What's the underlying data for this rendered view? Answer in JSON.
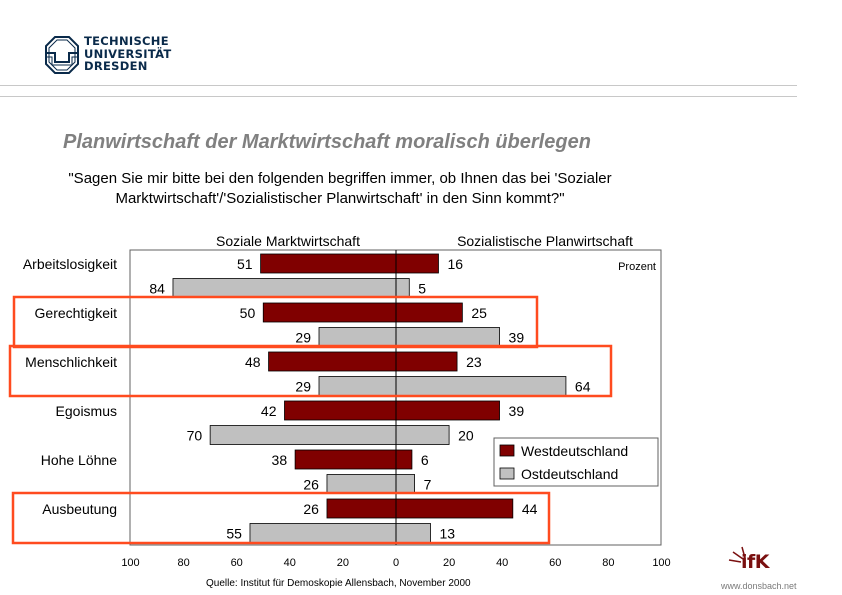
{
  "header": {
    "logo_lines": [
      "TECHNISCHE",
      "UNIVERSITÄT",
      "DRESDEN"
    ],
    "logo_icon": "tu-dresden-octagon-logo"
  },
  "slide": {
    "title": "Planwirtschaft der Marktwirtschaft moralisch überlegen",
    "question": "\"Sagen Sie mir bitte bei den folgenden begriffen immer, ob Ihnen das bei 'Sozialer\nMarktwirtschaft'/'Sozialistischer Planwirtschaft' in den Sinn kommt?\"",
    "source": "Quelle: Institut für Demoskopie Allensbach, November 2000"
  },
  "branding": {
    "ifk_label": "ifK",
    "ifk_url": "www.donsbach.net",
    "ifk_color": "#7a1010"
  },
  "colors": {
    "west": "#800000",
    "east": "#c0c0c0",
    "highlight": "#ff4b1f",
    "title_gray": "#808080"
  },
  "chart_data": {
    "type": "bar",
    "orientation": "horizontal-diverging",
    "left_header": "Soziale Marktwirtschaft",
    "right_header": "Sozialistische Planwirtschaft",
    "unit_label": "Prozent",
    "categories": [
      "Arbeitslosigkeit",
      "Gerechtigkeit",
      "Menschlichkeit",
      "Egoismus",
      "Hohe Löhne",
      "Ausbeutung"
    ],
    "series": [
      {
        "name": "Westdeutschland",
        "color": "#800000",
        "soziale_marktwirtschaft": [
          51,
          50,
          48,
          42,
          38,
          26
        ],
        "sozialistische_planwirtschaft": [
          16,
          25,
          23,
          39,
          6,
          44
        ]
      },
      {
        "name": "Ostdeutschland",
        "color": "#c0c0c0",
        "soziale_marktwirtschaft": [
          84,
          29,
          29,
          70,
          26,
          55
        ],
        "sozialistische_planwirtschaft": [
          5,
          39,
          64,
          20,
          7,
          13
        ]
      }
    ],
    "x_ticks_left": [
      100,
      80,
      60,
      40,
      20,
      0
    ],
    "x_ticks_right": [
      20,
      40,
      60,
      80,
      100
    ],
    "xlim": [
      -100,
      100
    ],
    "legend": [
      "Westdeutschland",
      "Ostdeutschland"
    ],
    "legend_position": "bottom-right",
    "highlighted_categories": [
      "Gerechtigkeit",
      "Menschlichkeit",
      "Ausbeutung"
    ],
    "grid": false
  }
}
